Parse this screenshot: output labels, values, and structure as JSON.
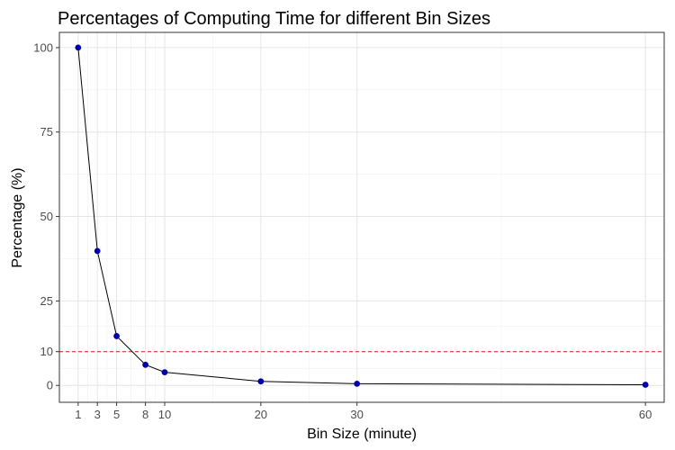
{
  "chart_data": {
    "type": "line",
    "title": "Percentages of Computing Time for different Bin Sizes",
    "xlabel": "Bin Size (minute)",
    "ylabel": "Percentage (%)",
    "x": [
      1,
      3,
      5,
      8,
      10,
      20,
      30,
      60
    ],
    "y": [
      100,
      39.8,
      14.6,
      6.1,
      3.9,
      1.2,
      0.5,
      0.2
    ],
    "xlim": [
      -0.95,
      61.95
    ],
    "ylim": [
      -5,
      104.5
    ],
    "x_ticks": [
      1,
      3,
      5,
      8,
      10,
      20,
      30,
      60
    ],
    "y_ticks": [
      0,
      10,
      25,
      50,
      75,
      100
    ],
    "reference_line": {
      "y": 10,
      "style": "dashed",
      "color": "#cc2222"
    },
    "line_color": "#000000",
    "point_color": "#0000aa",
    "grid": true
  }
}
